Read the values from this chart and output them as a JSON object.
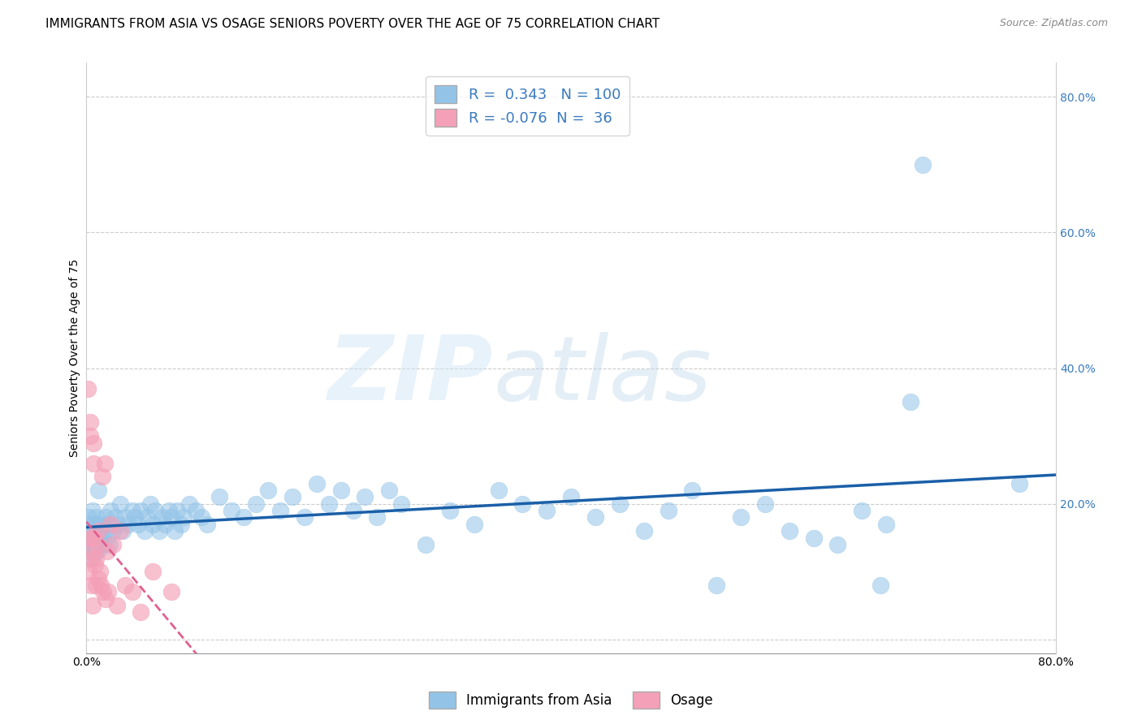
{
  "title": "IMMIGRANTS FROM ASIA VS OSAGE SENIORS POVERTY OVER THE AGE OF 75 CORRELATION CHART",
  "source": "Source: ZipAtlas.com",
  "ylabel": "Seniors Poverty Over the Age of 75",
  "xlim": [
    0.0,
    0.8
  ],
  "ylim": [
    -0.02,
    0.85
  ],
  "x_ticks": [
    0.0,
    0.1,
    0.2,
    0.3,
    0.4,
    0.5,
    0.6,
    0.7,
    0.8
  ],
  "x_tick_labels": [
    "0.0%",
    "",
    "",
    "",
    "",
    "",
    "",
    "",
    "80.0%"
  ],
  "y_ticks_right": [
    0.0,
    0.2,
    0.4,
    0.6,
    0.8
  ],
  "y_tick_labels_right": [
    "",
    "20.0%",
    "40.0%",
    "60.0%",
    "80.0%"
  ],
  "grid_color": "#cccccc",
  "background_color": "#ffffff",
  "blue_color": "#93C4E8",
  "pink_color": "#F4A0B8",
  "blue_line_color": "#1a5fa8",
  "pink_line_color": "#e06090",
  "blue_R": 0.343,
  "blue_N": 100,
  "pink_R": -0.076,
  "pink_N": 36,
  "legend_label_blue": "Immigrants from Asia",
  "legend_label_pink": "Osage",
  "title_fontsize": 11,
  "axis_fontsize": 10,
  "tick_fontsize": 10,
  "blue_scatter_x": [
    0.001,
    0.002,
    0.002,
    0.003,
    0.003,
    0.003,
    0.004,
    0.004,
    0.005,
    0.005,
    0.005,
    0.006,
    0.006,
    0.007,
    0.007,
    0.008,
    0.008,
    0.009,
    0.009,
    0.01,
    0.01,
    0.011,
    0.012,
    0.013,
    0.014,
    0.015,
    0.016,
    0.017,
    0.018,
    0.019,
    0.02,
    0.022,
    0.024,
    0.026,
    0.028,
    0.03,
    0.032,
    0.035,
    0.038,
    0.04,
    0.043,
    0.045,
    0.048,
    0.05,
    0.053,
    0.055,
    0.057,
    0.06,
    0.063,
    0.065,
    0.068,
    0.07,
    0.073,
    0.075,
    0.078,
    0.08,
    0.085,
    0.09,
    0.095,
    0.1,
    0.11,
    0.12,
    0.13,
    0.14,
    0.15,
    0.16,
    0.17,
    0.18,
    0.19,
    0.2,
    0.21,
    0.22,
    0.23,
    0.24,
    0.25,
    0.26,
    0.28,
    0.3,
    0.32,
    0.34,
    0.36,
    0.38,
    0.4,
    0.42,
    0.44,
    0.46,
    0.48,
    0.5,
    0.52,
    0.54,
    0.56,
    0.58,
    0.6,
    0.62,
    0.64,
    0.655,
    0.66,
    0.68,
    0.69,
    0.77
  ],
  "blue_scatter_y": [
    0.15,
    0.18,
    0.14,
    0.16,
    0.13,
    0.17,
    0.15,
    0.12,
    0.16,
    0.14,
    0.19,
    0.15,
    0.17,
    0.13,
    0.16,
    0.14,
    0.18,
    0.15,
    0.13,
    0.17,
    0.22,
    0.16,
    0.15,
    0.17,
    0.14,
    0.16,
    0.18,
    0.15,
    0.17,
    0.14,
    0.19,
    0.16,
    0.18,
    0.17,
    0.2,
    0.16,
    0.18,
    0.17,
    0.19,
    0.18,
    0.17,
    0.19,
    0.16,
    0.18,
    0.2,
    0.17,
    0.19,
    0.16,
    0.18,
    0.17,
    0.19,
    0.18,
    0.16,
    0.19,
    0.17,
    0.18,
    0.2,
    0.19,
    0.18,
    0.17,
    0.21,
    0.19,
    0.18,
    0.2,
    0.22,
    0.19,
    0.21,
    0.18,
    0.23,
    0.2,
    0.22,
    0.19,
    0.21,
    0.18,
    0.22,
    0.2,
    0.14,
    0.19,
    0.17,
    0.22,
    0.2,
    0.19,
    0.21,
    0.18,
    0.2,
    0.16,
    0.19,
    0.22,
    0.08,
    0.18,
    0.2,
    0.16,
    0.15,
    0.14,
    0.19,
    0.08,
    0.17,
    0.35,
    0.7,
    0.23
  ],
  "pink_scatter_x": [
    0.001,
    0.002,
    0.002,
    0.003,
    0.003,
    0.004,
    0.004,
    0.005,
    0.005,
    0.005,
    0.006,
    0.006,
    0.007,
    0.007,
    0.008,
    0.008,
    0.009,
    0.01,
    0.01,
    0.011,
    0.012,
    0.013,
    0.014,
    0.015,
    0.016,
    0.017,
    0.018,
    0.02,
    0.022,
    0.025,
    0.028,
    0.032,
    0.038,
    0.045,
    0.055,
    0.07
  ],
  "pink_scatter_y": [
    0.37,
    0.15,
    0.1,
    0.32,
    0.3,
    0.12,
    0.08,
    0.15,
    0.13,
    0.05,
    0.26,
    0.29,
    0.15,
    0.11,
    0.08,
    0.12,
    0.14,
    0.16,
    0.09,
    0.1,
    0.08,
    0.24,
    0.07,
    0.26,
    0.06,
    0.13,
    0.07,
    0.17,
    0.14,
    0.05,
    0.16,
    0.08,
    0.07,
    0.04,
    0.1,
    0.07
  ]
}
